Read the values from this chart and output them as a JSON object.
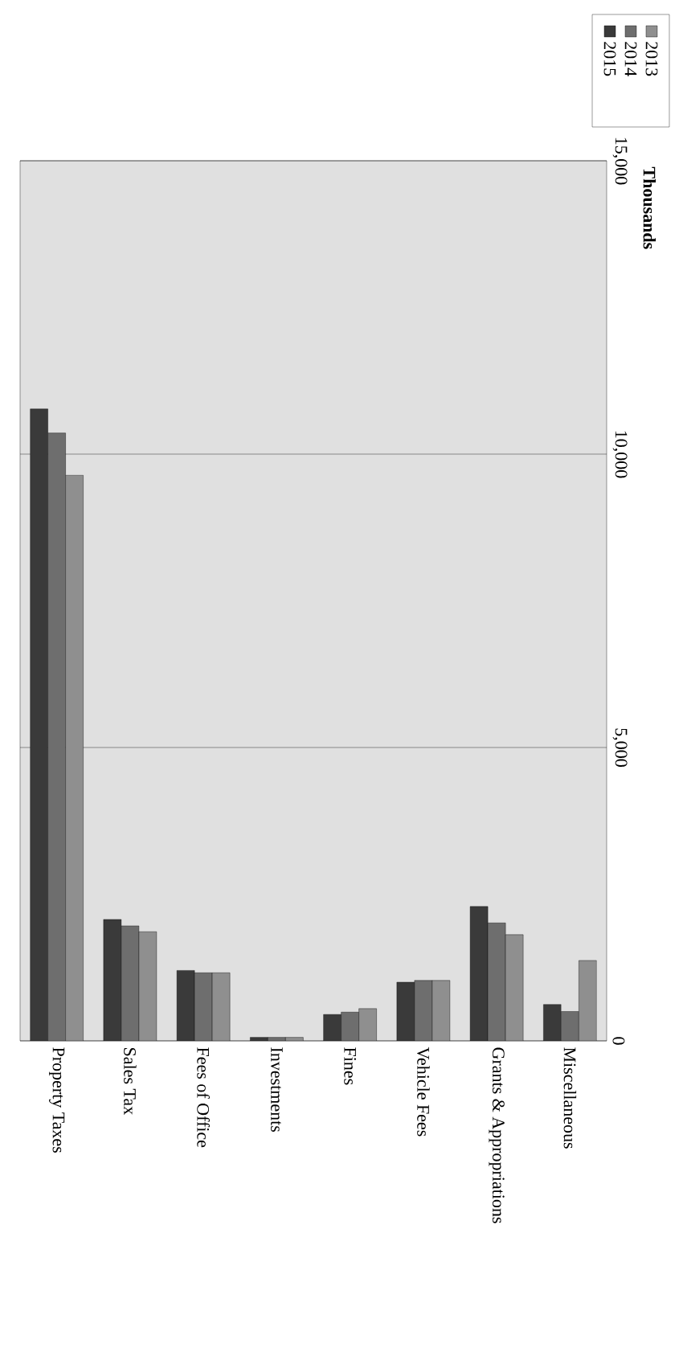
{
  "chart_data": {
    "type": "bar",
    "ylabel": "Thousands",
    "categories": [
      "Property Taxes",
      "Sales Tax",
      "Fees of Office",
      "Investments",
      "Fines",
      "Vehicle Fees",
      "Grants & Appropriations",
      "Miscellaneous"
    ],
    "series": [
      {
        "name": "2015",
        "color": "#3a3a3a",
        "values": [
          10770,
          2070,
          1200,
          60,
          450,
          1000,
          2290,
          620
        ]
      },
      {
        "name": "2014",
        "color": "#6e6e6e",
        "values": [
          10360,
          1960,
          1160,
          60,
          490,
          1030,
          2010,
          500
        ]
      },
      {
        "name": "2013",
        "color": "#8f8f8f",
        "values": [
          9640,
          1860,
          1160,
          60,
          550,
          1030,
          1810,
          1370
        ]
      }
    ],
    "ylim": [
      0,
      15000
    ],
    "yticks": [
      0,
      {
        "value": 5000,
        "label": "5,000"
      },
      {
        "value": 10000,
        "label": "10,000"
      },
      {
        "value": 15000,
        "label": "15,000"
      }
    ],
    "grid": "y",
    "legend": "top right"
  }
}
